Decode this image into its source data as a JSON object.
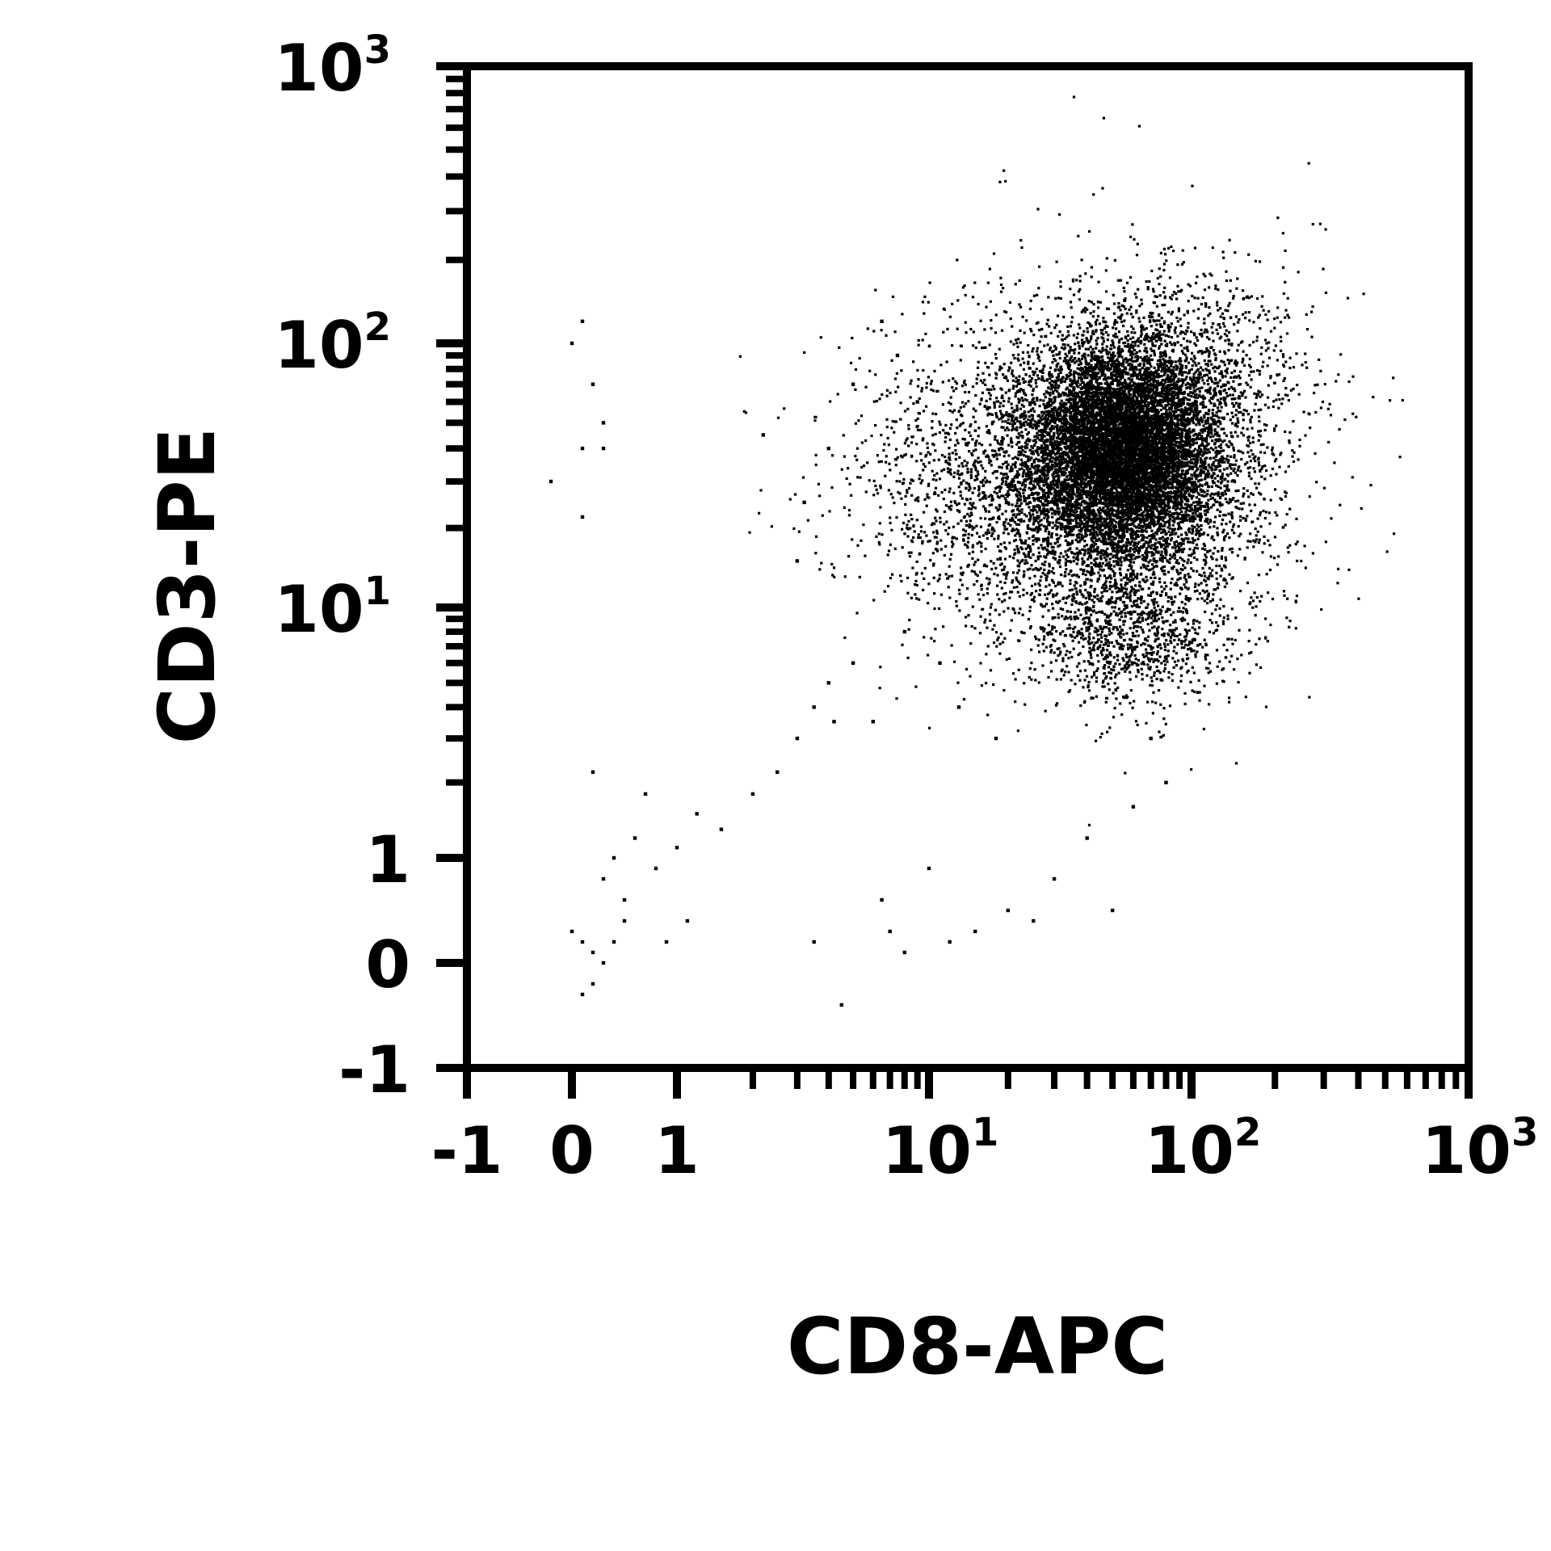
{
  "chart_data": {
    "type": "scatter",
    "title": "",
    "xlabel": "CD8-APC",
    "ylabel": "CD3-PE",
    "x_scale": "biexponential",
    "y_scale": "biexponential",
    "xlim": [
      -1,
      1000
    ],
    "ylim": [
      -1,
      1000
    ],
    "grid": false,
    "legend": "none",
    "point_color": "#000000",
    "x_ticks": [
      {
        "value": -1,
        "base": "-1",
        "exp": ""
      },
      {
        "value": 0,
        "base": "0",
        "exp": ""
      },
      {
        "value": 1,
        "base": "1",
        "exp": ""
      },
      {
        "value": 10,
        "base": "10",
        "exp": "1"
      },
      {
        "value": 100,
        "base": "10",
        "exp": "2"
      },
      {
        "value": 1000,
        "base": "10",
        "exp": "3"
      }
    ],
    "y_ticks": [
      {
        "value": -1,
        "base": "-1",
        "exp": ""
      },
      {
        "value": 0,
        "base": "0",
        "exp": ""
      },
      {
        "value": 1,
        "base": "1",
        "exp": ""
      },
      {
        "value": 10,
        "base": "10",
        "exp": "1"
      },
      {
        "value": 100,
        "base": "10",
        "exp": "2"
      },
      {
        "value": 1000,
        "base": "10",
        "exp": "3"
      }
    ],
    "populations": [
      {
        "center_x": 55,
        "center_y": 40,
        "spread_x_decades": 0.18,
        "spread_y_decades": 0.2,
        "count": 9000
      },
      {
        "center_x": 45,
        "center_y": 30,
        "spread_x_decades": 0.35,
        "spread_y_decades": 0.35,
        "count": 3000
      },
      {
        "center_x": 60,
        "center_y": 8,
        "spread_x_decades": 0.2,
        "spread_y_decades": 0.15,
        "count": 900
      },
      {
        "center_x": 20,
        "center_y": 30,
        "spread_x_decades": 0.35,
        "spread_y_decades": 0.25,
        "count": 1200
      },
      {
        "center_x": 120,
        "center_y": 80,
        "spread_x_decades": 0.2,
        "spread_y_decades": 0.2,
        "count": 500
      }
    ],
    "sparse_points": [
      [
        0.0,
        100
      ],
      [
        0.1,
        120
      ],
      [
        0.2,
        70
      ],
      [
        0.3,
        50
      ],
      [
        -0.2,
        30
      ],
      [
        0.1,
        40
      ],
      [
        0.3,
        40
      ],
      [
        0.1,
        22
      ],
      [
        0.0,
        0.3
      ],
      [
        0.1,
        0.2
      ],
      [
        0.2,
        0.1
      ],
      [
        0.3,
        0.0
      ],
      [
        0.1,
        -0.3
      ],
      [
        0.4,
        0.2
      ],
      [
        0.2,
        -0.2
      ],
      [
        0.5,
        0.4
      ],
      [
        0.3,
        0.8
      ],
      [
        0.6,
        1.2
      ],
      [
        0.8,
        0.9
      ],
      [
        1.0,
        1.1
      ],
      [
        1.2,
        1.5
      ],
      [
        0.7,
        1.8
      ],
      [
        0.4,
        1.0
      ],
      [
        0.5,
        0.6
      ],
      [
        1.5,
        1.3
      ],
      [
        2.0,
        1.8
      ],
      [
        2.5,
        2.2
      ],
      [
        3.0,
        3.0
      ],
      [
        3.5,
        4.0
      ],
      [
        4.0,
        5.0
      ],
      [
        5.0,
        6.0
      ],
      [
        6.0,
        3.5
      ],
      [
        7.0,
        0.3
      ],
      [
        8.0,
        0.1
      ],
      [
        12,
        0.2
      ],
      [
        15,
        0.3
      ],
      [
        20,
        0.5
      ],
      [
        30,
        0.8
      ],
      [
        40,
        1.2
      ],
      [
        50,
        0.5
      ],
      [
        10,
        0.9
      ],
      [
        4.5,
        -0.4
      ],
      [
        3.5,
        0.2
      ],
      [
        6.5,
        0.6
      ],
      [
        25,
        0.4
      ],
      [
        60,
        1.6
      ],
      [
        80,
        2.0
      ],
      [
        70,
        3.0
      ],
      [
        2.2,
        45
      ],
      [
        3.2,
        25
      ],
      [
        4.0,
        40
      ],
      [
        5.0,
        70
      ],
      [
        6.5,
        120
      ],
      [
        7.5,
        90
      ],
      [
        3.0,
        15
      ],
      [
        9.0,
        60
      ],
      [
        0.2,
        2.2
      ],
      [
        1.1,
        0.4
      ],
      [
        0.9,
        0.2
      ],
      [
        13,
        4.0
      ],
      [
        18,
        3.0
      ],
      [
        11,
        6.0
      ],
      [
        8.0,
        8.0
      ],
      [
        4.2,
        3.5
      ]
    ]
  }
}
